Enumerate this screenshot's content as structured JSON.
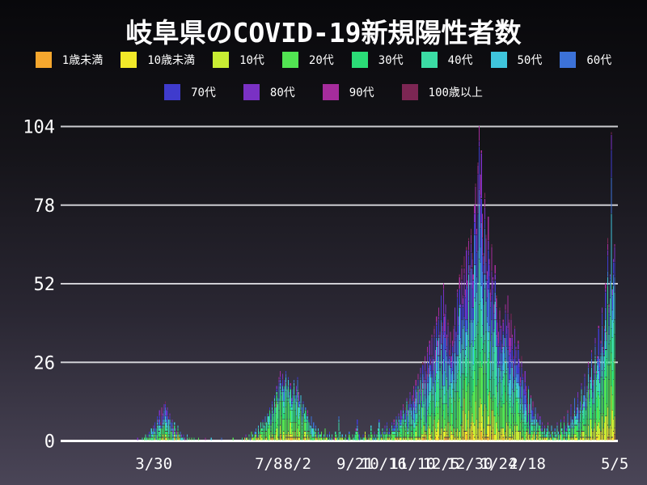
{
  "title": "岐阜県のCOVID-19新規陽性者数",
  "colors": {
    "background_top": "#08080b",
    "background_bottom": "#4a4557",
    "grid": "#e6e6eb",
    "baseline": "#ffffff",
    "text": "#ffffff"
  },
  "legend": {
    "rows": [
      [
        0,
        1,
        2,
        3,
        4,
        5,
        6,
        7
      ],
      [
        8,
        9,
        10,
        11
      ]
    ]
  },
  "chart_data": {
    "type": "bar",
    "stacked": true,
    "title": "岐阜県のCOVID-19新規陽性者数",
    "xlabel": "",
    "ylabel": "",
    "ylim": [
      0,
      104
    ],
    "yticks": [
      0,
      26,
      52,
      78,
      104
    ],
    "grid": "horizontal",
    "legend_position": "top",
    "xticks": [
      {
        "label": "3/30",
        "day": 81
      },
      {
        "label": "7/8",
        "day": 181
      },
      {
        "label": "8/2",
        "day": 206
      },
      {
        "label": "9/21",
        "day": 256
      },
      {
        "label": "10/16",
        "day": 281
      },
      {
        "label": "11/10",
        "day": 306
      },
      {
        "label": "12/5",
        "day": 331
      },
      {
        "label": "12/30",
        "day": 356
      },
      {
        "label": "1/24",
        "day": 381
      },
      {
        "label": "2/18",
        "day": 406
      },
      {
        "label": "5/5",
        "day": 482
      }
    ],
    "groups": [
      {
        "label": "1歳未満",
        "color": "#F5A72E"
      },
      {
        "label": "10歳未満",
        "color": "#F2E929"
      },
      {
        "label": "10代",
        "color": "#C8EC33"
      },
      {
        "label": "20代",
        "color": "#52E452"
      },
      {
        "label": "30代",
        "color": "#2BDD77"
      },
      {
        "label": "40代",
        "color": "#3BDCA4"
      },
      {
        "label": "50代",
        "color": "#3FC5DC"
      },
      {
        "label": "60代",
        "color": "#3C72D8"
      },
      {
        "label": "70代",
        "color": "#3F3BCD"
      },
      {
        "label": "80代",
        "color": "#7A31C4"
      },
      {
        "label": "90代",
        "color": "#A62C9C"
      },
      {
        "label": "100歳以上",
        "color": "#7C2653"
      }
    ],
    "era_shares": [
      {
        "until": 130,
        "shares": [
          0.01,
          0.02,
          0.05,
          0.17,
          0.13,
          0.14,
          0.14,
          0.12,
          0.11,
          0.07,
          0.03,
          0.01
        ]
      },
      {
        "until": 240,
        "shares": [
          0.01,
          0.03,
          0.09,
          0.28,
          0.18,
          0.13,
          0.11,
          0.08,
          0.05,
          0.03,
          0.01,
          0.0
        ]
      },
      {
        "until": 300,
        "shares": [
          0.01,
          0.04,
          0.09,
          0.22,
          0.16,
          0.14,
          0.12,
          0.1,
          0.07,
          0.03,
          0.02,
          0.0
        ]
      },
      {
        "until": 412,
        "shares": [
          0.005,
          0.025,
          0.06,
          0.16,
          0.13,
          0.12,
          0.12,
          0.11,
          0.11,
          0.09,
          0.05,
          0.01
        ]
      },
      {
        "until": 486,
        "shares": [
          0.005,
          0.035,
          0.09,
          0.23,
          0.17,
          0.14,
          0.12,
          0.09,
          0.07,
          0.04,
          0.015,
          0.005
        ]
      }
    ],
    "seed": 7,
    "daily_totals": [
      0,
      0,
      0,
      0,
      0,
      0,
      0,
      0,
      0,
      0,
      0,
      0,
      0,
      0,
      0,
      0,
      0,
      0,
      0,
      0,
      0,
      0,
      0,
      0,
      0,
      0,
      0,
      0,
      0,
      0,
      0,
      0,
      0,
      0,
      0,
      0,
      0,
      0,
      0,
      0,
      0,
      0,
      0,
      0,
      0,
      0,
      0,
      0,
      0,
      0,
      0,
      0,
      0,
      0,
      0,
      0,
      0,
      0,
      0,
      0,
      0,
      0,
      0,
      0,
      0,
      0,
      0,
      1,
      0,
      0,
      0,
      1,
      0,
      1,
      2,
      1,
      2,
      3,
      2,
      4,
      3,
      5,
      6,
      4,
      8,
      7,
      10,
      6,
      11,
      9,
      12,
      13,
      10,
      11,
      8,
      9,
      6,
      7,
      5,
      6,
      4,
      3,
      5,
      2,
      3,
      2,
      1,
      2,
      1,
      1,
      2,
      0,
      1,
      0,
      1,
      0,
      1,
      0,
      0,
      0,
      1,
      0,
      0,
      0,
      0,
      0,
      1,
      0,
      0,
      0,
      0,
      1,
      0,
      0,
      0,
      0,
      0,
      0,
      0,
      0,
      1,
      0,
      0,
      0,
      0,
      0,
      0,
      0,
      0,
      0,
      1,
      0,
      0,
      0,
      0,
      0,
      0,
      0,
      1,
      0,
      1,
      2,
      1,
      0,
      2,
      1,
      3,
      2,
      1,
      3,
      4,
      2,
      5,
      3,
      6,
      4,
      7,
      5,
      8,
      6,
      9,
      8,
      11,
      9,
      13,
      10,
      15,
      12,
      18,
      14,
      21,
      23,
      19,
      22,
      17,
      20,
      23,
      18,
      21,
      16,
      19,
      14,
      17,
      20,
      15,
      18,
      21,
      16,
      13,
      15,
      11,
      13,
      9,
      11,
      8,
      10,
      7,
      5,
      8,
      4,
      6,
      3,
      5,
      2,
      4,
      3,
      2,
      3,
      1,
      2,
      4,
      1,
      2,
      0,
      3,
      1,
      2,
      0,
      1,
      3,
      2,
      1,
      8,
      3,
      1,
      2,
      0,
      1,
      2,
      0,
      1,
      3,
      1,
      0,
      2,
      1,
      2,
      4,
      7,
      3,
      2,
      1,
      0,
      2,
      1,
      3,
      1,
      0,
      2,
      1,
      5,
      2,
      1,
      3,
      1,
      2,
      4,
      7,
      3,
      2,
      4,
      3,
      5,
      2,
      6,
      3,
      4,
      2,
      6,
      4,
      7,
      5,
      8,
      6,
      9,
      7,
      10,
      8,
      12,
      9,
      11,
      14,
      10,
      13,
      16,
      12,
      15,
      18,
      14,
      20,
      16,
      22,
      17,
      24,
      19,
      26,
      21,
      28,
      23,
      31,
      25,
      33,
      27,
      35,
      28,
      38,
      30,
      41,
      33,
      44,
      36,
      48,
      39,
      52,
      42,
      45,
      35,
      40,
      30,
      36,
      28,
      33,
      38,
      44,
      36,
      50,
      41,
      55,
      45,
      58,
      48,
      61,
      50,
      64,
      53,
      67,
      58,
      70,
      62,
      55,
      78,
      85,
      70,
      92,
      104,
      88,
      96,
      75,
      62,
      82,
      68,
      56,
      74,
      60,
      50,
      65,
      54,
      45,
      58,
      48,
      40,
      36,
      44,
      38,
      32,
      40,
      34,
      45,
      38,
      48,
      40,
      34,
      42,
      35,
      28,
      38,
      31,
      25,
      33,
      27,
      21,
      28,
      22,
      17,
      23,
      18,
      14,
      18,
      12,
      15,
      10,
      13,
      8,
      11,
      7,
      9,
      5,
      8,
      4,
      6,
      3,
      5,
      2,
      4,
      6,
      3,
      2,
      5,
      3,
      1,
      4,
      2,
      6,
      3,
      2,
      7,
      4,
      3,
      8,
      5,
      4,
      10,
      6,
      5,
      12,
      7,
      9,
      14,
      8,
      11,
      16,
      10,
      13,
      19,
      12,
      15,
      22,
      14,
      18,
      26,
      17,
      21,
      30,
      20,
      25,
      34,
      23,
      28,
      38,
      27,
      33,
      44,
      31,
      38,
      52,
      36,
      67,
      45,
      55,
      102,
      50,
      60,
      65,
      0,
      0,
      0
    ]
  }
}
